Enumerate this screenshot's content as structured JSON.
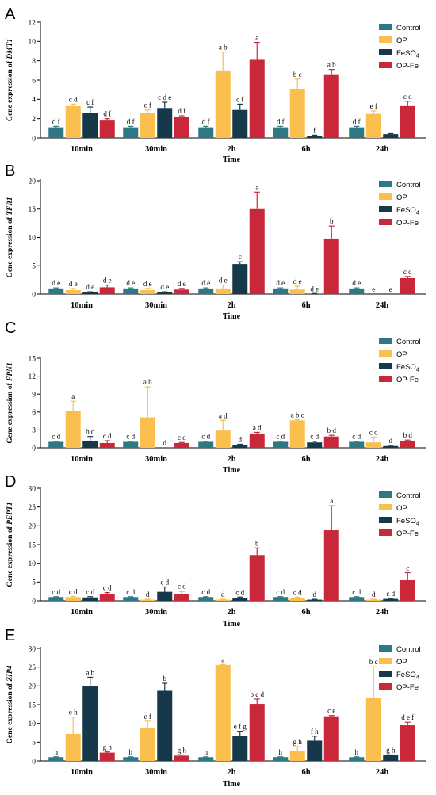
{
  "chart_data": [
    {
      "panel": "A",
      "type": "bar",
      "ylabel_prefix": "Gene expression of",
      "gene": "DMT1",
      "xlabel": "Time",
      "categories": [
        "10min",
        "30min",
        "2h",
        "6h",
        "24h"
      ],
      "ylim": [
        0,
        12
      ],
      "yticks": [
        0,
        2,
        4,
        6,
        8,
        10,
        12
      ],
      "legend": [
        "Control",
        "OP",
        "FeSO4",
        "OP-Fe"
      ],
      "series": [
        {
          "name": "Control",
          "color": "#2e7785",
          "values": [
            1.1,
            1.1,
            1.1,
            1.1,
            1.1
          ],
          "errors": [
            0.1,
            0.1,
            0.1,
            0.1,
            0.1
          ],
          "labels": [
            "d f",
            "d f",
            "d f",
            "d f",
            "d f"
          ]
        },
        {
          "name": "OP",
          "color": "#fbbf4e",
          "values": [
            3.3,
            2.6,
            7.0,
            5.1,
            2.5
          ],
          "errors": [
            0.2,
            0.3,
            1.9,
            1.0,
            0.3
          ],
          "labels": [
            "c d",
            "c f",
            "a b",
            "b c",
            "e f"
          ]
        },
        {
          "name": "FeSO4",
          "color": "#15384a",
          "values": [
            2.6,
            3.1,
            2.9,
            0.2,
            0.4
          ],
          "errors": [
            0.6,
            0.6,
            0.6,
            0.1,
            0.05
          ],
          "labels": [
            "c f",
            "c d e",
            "c f",
            "f",
            ""
          ]
        },
        {
          "name": "OP-Fe",
          "color": "#c9283a",
          "values": [
            1.8,
            2.2,
            8.1,
            6.6,
            3.3
          ],
          "errors": [
            0.2,
            0.1,
            1.8,
            0.5,
            0.5
          ],
          "labels": [
            "d f",
            "d f",
            "a",
            "a b",
            "c d"
          ]
        }
      ]
    },
    {
      "panel": "B",
      "type": "bar",
      "ylabel_prefix": "Gene expression of",
      "gene": "TFR1",
      "xlabel": "Time",
      "categories": [
        "10min",
        "30min",
        "2h",
        "6h",
        "24h"
      ],
      "ylim": [
        0,
        20
      ],
      "yticks": [
        0,
        5,
        10,
        15,
        20
      ],
      "legend": [
        "Control",
        "OP",
        "FeSO4",
        "OP-Fe"
      ],
      "series": [
        {
          "name": "Control",
          "color": "#2e7785",
          "values": [
            1.0,
            1.0,
            1.0,
            1.0,
            1.0
          ],
          "errors": [
            0.1,
            0.1,
            0.1,
            0.1,
            0.1
          ],
          "labels": [
            "d e",
            "d e",
            "d e",
            "d e",
            "d e"
          ]
        },
        {
          "name": "OP",
          "color": "#fbbf4e",
          "values": [
            0.7,
            0.7,
            1.0,
            0.8,
            0
          ],
          "errors": [
            0.3,
            0.3,
            0.6,
            0.6,
            0
          ],
          "labels": [
            "d e",
            "d e",
            "d e",
            "d e",
            "e"
          ]
        },
        {
          "name": "FeSO4",
          "color": "#15384a",
          "values": [
            0.3,
            0.3,
            5.3,
            0.05,
            0
          ],
          "errors": [
            0.1,
            0.1,
            0.4,
            0.05,
            0
          ],
          "labels": [
            "d e",
            "d e",
            "c",
            "d e",
            "e"
          ]
        },
        {
          "name": "OP-Fe",
          "color": "#c9283a",
          "values": [
            1.2,
            0.8,
            15.0,
            9.8,
            2.8
          ],
          "errors": [
            0.4,
            0.2,
            3.0,
            2.2,
            0.3
          ],
          "labels": [
            "d e",
            "d e",
            "a",
            "b",
            "c d"
          ]
        }
      ]
    },
    {
      "panel": "C",
      "type": "bar",
      "ylabel_prefix": "Gene expression of",
      "gene": "FPN1",
      "xlabel": "Time",
      "categories": [
        "10min",
        "30min",
        "2h",
        "6h",
        "24h"
      ],
      "ylim": [
        0,
        15
      ],
      "yticks": [
        0,
        3,
        6,
        9,
        12,
        15
      ],
      "legend": [
        "Control",
        "OP",
        "FeSO4",
        "OP-Fe"
      ],
      "series": [
        {
          "name": "Control",
          "color": "#2e7785",
          "values": [
            1.0,
            1.0,
            1.0,
            1.0,
            1.0
          ],
          "errors": [
            0.1,
            0.1,
            0.1,
            0.1,
            0.1
          ],
          "labels": [
            "c d",
            "c d",
            "c d",
            "c d",
            "c d"
          ]
        },
        {
          "name": "OP",
          "color": "#fbbf4e",
          "values": [
            6.2,
            5.1,
            2.9,
            4.6,
            0.9
          ],
          "errors": [
            1.6,
            5.1,
            1.7,
            0.1,
            0.9
          ],
          "labels": [
            "a",
            "a b",
            "a d",
            "a b c",
            "c d"
          ]
        },
        {
          "name": "FeSO4",
          "color": "#15384a",
          "values": [
            1.2,
            0.0,
            0.5,
            0.9,
            0.3
          ],
          "errors": [
            0.7,
            0,
            0.1,
            0.2,
            0.1
          ],
          "labels": [
            "b d",
            "d",
            "d",
            "c d",
            "d"
          ]
        },
        {
          "name": "OP-Fe",
          "color": "#c9283a",
          "values": [
            0.8,
            0.8,
            2.4,
            1.9,
            1.2
          ],
          "errors": [
            0.4,
            0.1,
            0.2,
            0.2,
            0.1
          ],
          "labels": [
            "c d",
            "c d",
            "a d",
            "b d",
            "b d"
          ]
        }
      ]
    },
    {
      "panel": "D",
      "type": "bar",
      "ylabel_prefix": "Gene expression of",
      "gene": "PEPT1",
      "xlabel": "Time",
      "categories": [
        "10min",
        "30min",
        "2h",
        "6h",
        "24h"
      ],
      "ylim": [
        0,
        30
      ],
      "yticks": [
        0,
        5,
        10,
        15,
        20,
        25,
        30
      ],
      "legend": [
        "Control",
        "OP",
        "FeSO4",
        "OP-Fe"
      ],
      "series": [
        {
          "name": "Control",
          "color": "#2e7785",
          "values": [
            1.0,
            1.0,
            1.0,
            1.0,
            1.0
          ],
          "errors": [
            0.1,
            0.1,
            0.1,
            0.1,
            0.1
          ],
          "labels": [
            "c d",
            "c d",
            "c d",
            "c d",
            "c d"
          ]
        },
        {
          "name": "OP",
          "color": "#fbbf4e",
          "values": [
            1.0,
            0.3,
            0.3,
            0.8,
            0.3
          ],
          "errors": [
            0.2,
            0.1,
            0.1,
            0.2,
            0.1
          ],
          "labels": [
            "c d",
            "d",
            "d",
            "c d",
            "d"
          ]
        },
        {
          "name": "FeSO4",
          "color": "#15384a",
          "values": [
            0.9,
            2.4,
            0.8,
            0.3,
            0.5
          ],
          "errors": [
            0.2,
            1.3,
            0.2,
            0.1,
            0.1
          ],
          "labels": [
            "c d",
            "c d",
            "c d",
            "d",
            "c d"
          ]
        },
        {
          "name": "OP-Fe",
          "color": "#c9283a",
          "values": [
            1.7,
            1.8,
            12.2,
            18.8,
            5.5
          ],
          "errors": [
            0.5,
            0.8,
            1.9,
            6.5,
            2.0
          ],
          "labels": [
            "c d",
            "c d",
            "b",
            "a",
            "c"
          ]
        }
      ]
    },
    {
      "panel": "E",
      "type": "bar",
      "ylabel_prefix": "Gene expression of",
      "gene": "ZIP4",
      "xlabel": "Time",
      "categories": [
        "10min",
        "30min",
        "2h",
        "6h",
        "24h"
      ],
      "ylim": [
        0,
        30
      ],
      "yticks": [
        0,
        5,
        10,
        15,
        20,
        25,
        30
      ],
      "legend": [
        "Control",
        "OP",
        "FeSO4",
        "OP-Fe"
      ],
      "series": [
        {
          "name": "Control",
          "color": "#2e7785",
          "values": [
            1.0,
            1.0,
            1.0,
            1.0,
            1.0
          ],
          "errors": [
            0.1,
            0.1,
            0.1,
            0.1,
            0.1
          ],
          "labels": [
            "h",
            "h",
            "h",
            "h",
            "h"
          ]
        },
        {
          "name": "OP",
          "color": "#fbbf4e",
          "values": [
            7.2,
            8.9,
            25.6,
            2.6,
            16.9
          ],
          "errors": [
            4.5,
            1.7,
            0.1,
            1.2,
            8.2
          ],
          "labels": [
            "e h",
            "e f",
            "a",
            "g h",
            "b c"
          ]
        },
        {
          "name": "FeSO4",
          "color": "#15384a",
          "values": [
            20.0,
            18.7,
            6.7,
            5.4,
            1.5
          ],
          "errors": [
            2.3,
            2.0,
            1.2,
            1.2,
            0.1
          ],
          "labels": [
            "a b",
            "b",
            "e f g",
            "f h",
            "g h"
          ]
        },
        {
          "name": "OP-Fe",
          "color": "#c9283a",
          "values": [
            2.2,
            1.4,
            15.2,
            11.9,
            9.5
          ],
          "errors": [
            0.2,
            0.2,
            1.3,
            0.2,
            0.8
          ],
          "labels": [
            "g h",
            "g h",
            "b c d",
            "c e",
            "d e f"
          ]
        }
      ]
    }
  ]
}
